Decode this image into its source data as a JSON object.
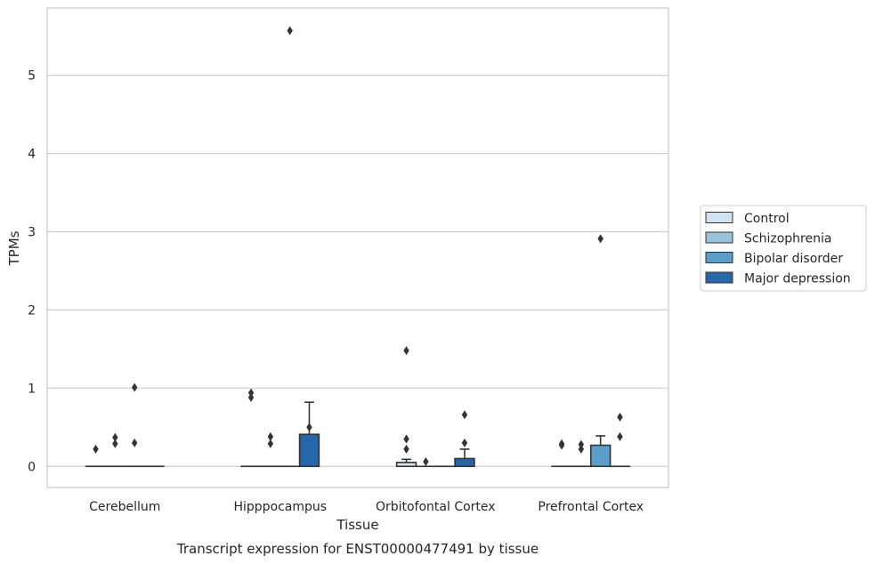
{
  "chart_data": {
    "type": "box",
    "title": "",
    "caption": "Transcript expression for ENST00000477491 by tissue",
    "xlabel": "Tissue",
    "ylabel": "TPMs",
    "ylim": [
      -0.27,
      5.86
    ],
    "yticks": [
      0,
      1,
      2,
      3,
      4,
      5
    ],
    "grid": "horizontal",
    "legend_position": "right",
    "categories": [
      "Cerebellum",
      "Hipppocampus",
      "Orbitofontal Cortex",
      "Prefrontal Cortex"
    ],
    "series": [
      {
        "name": "Control",
        "color": "#d2e2ef",
        "boxes": [
          {
            "q1": 0,
            "median": 0,
            "q3": 0,
            "whisker_low": 0,
            "whisker_high": 0,
            "outliers": [
              0.22
            ]
          },
          {
            "q1": 0,
            "median": 0,
            "q3": 0,
            "whisker_low": 0,
            "whisker_high": 0,
            "outliers": [
              0.88,
              0.94
            ]
          },
          {
            "q1": 0,
            "median": 0,
            "q3": 0.05,
            "whisker_low": 0,
            "whisker_high": 0.09,
            "outliers": [
              0.22,
              0.35,
              1.48
            ]
          },
          {
            "q1": 0,
            "median": 0,
            "q3": 0,
            "whisker_low": 0,
            "whisker_high": 0,
            "outliers": [
              0.27,
              0.29
            ]
          }
        ]
      },
      {
        "name": "Schizophrenia",
        "color": "#9ac3dd",
        "boxes": [
          {
            "q1": 0,
            "median": 0,
            "q3": 0,
            "whisker_low": 0,
            "whisker_high": 0,
            "outliers": [
              0.29,
              0.37
            ]
          },
          {
            "q1": 0,
            "median": 0,
            "q3": 0,
            "whisker_low": 0,
            "whisker_high": 0,
            "outliers": [
              0.29,
              0.38
            ]
          },
          {
            "q1": 0,
            "median": 0,
            "q3": 0,
            "whisker_low": 0,
            "whisker_high": 0,
            "outliers": [
              0.06
            ]
          },
          {
            "q1": 0,
            "median": 0,
            "q3": 0,
            "whisker_low": 0,
            "whisker_high": 0,
            "outliers": [
              0.22,
              0.28
            ]
          }
        ]
      },
      {
        "name": "Bipolar disorder",
        "color": "#5a9ec9",
        "boxes": [
          {
            "q1": 0,
            "median": 0,
            "q3": 0,
            "whisker_low": 0,
            "whisker_high": 0,
            "outliers": [
              0.3,
              1.01
            ]
          },
          {
            "q1": 0,
            "median": 0,
            "q3": 0,
            "whisker_low": 0,
            "whisker_high": 0,
            "outliers": [
              5.57
            ]
          },
          {
            "q1": 0,
            "median": 0,
            "q3": 0,
            "whisker_low": 0,
            "whisker_high": 0,
            "outliers": []
          },
          {
            "q1": 0,
            "median": 0,
            "q3": 0.27,
            "whisker_low": 0,
            "whisker_high": 0.39,
            "outliers": [
              2.91
            ]
          }
        ]
      },
      {
        "name": "Major depression",
        "color": "#2567a8",
        "boxes": [
          {
            "q1": 0,
            "median": 0,
            "q3": 0,
            "whisker_low": 0,
            "whisker_high": 0,
            "outliers": []
          },
          {
            "q1": 0,
            "median": 0,
            "q3": 0.41,
            "whisker_low": 0,
            "whisker_high": 0.82,
            "outliers": [
              0.5
            ]
          },
          {
            "q1": 0,
            "median": 0,
            "q3": 0.1,
            "whisker_low": 0,
            "whisker_high": 0.22,
            "outliers": [
              0.3,
              0.66
            ]
          },
          {
            "q1": 0,
            "median": 0,
            "q3": 0,
            "whisker_low": 0,
            "whisker_high": 0,
            "outliers": [
              0.38,
              0.63
            ]
          }
        ]
      }
    ]
  },
  "colors": {
    "grid": "#cfcfcf",
    "frame": "#cccccc",
    "box_edge": "#333333",
    "text": "#262626"
  }
}
